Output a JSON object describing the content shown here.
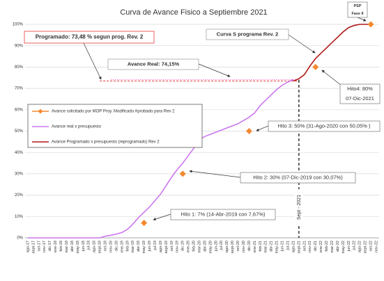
{
  "chart_data": {
    "type": "line",
    "title": "Curva de Avance Fisico a Septiembre 2021",
    "categories": [
      "ago-17",
      "sept-17",
      "oct-17",
      "nov-17",
      "dic-17",
      "ene-18",
      "feb-18",
      "mar-18",
      "abr-18",
      "may-18",
      "jun-18",
      "jul-18",
      "ago-18",
      "sept-18",
      "oct-18",
      "nov-18",
      "dic-18",
      "ene-19",
      "feb-19",
      "mar-19",
      "abr-19",
      "may-19",
      "jun-19",
      "jul-19",
      "ago-19",
      "sept-19",
      "oct-19",
      "nov-19",
      "dic-19",
      "ene-20",
      "feb-20",
      "mar-20",
      "abr-20",
      "may-20",
      "jun-20",
      "jul-20",
      "ago-20",
      "sept-20",
      "oct-20",
      "nov-20",
      "dic-20",
      "ene-21",
      "feb-21",
      "mar-21",
      "abr-21",
      "may-21",
      "jun-21",
      "jul-21",
      "ago-21",
      "sept-21",
      "oct-21",
      "nov-21",
      "dic-21",
      "ene-22",
      "feb-22",
      "mar-22",
      "abr-22",
      "may-22",
      "jun-22",
      "jul-22",
      "ago-22",
      "sept-22",
      "oct-22",
      "nov-22"
    ],
    "series": [
      {
        "name": "Avance solicitado por MOP Proy. Modificado Aprobado para Rev 2",
        "color": "#f28a30",
        "style": "markers",
        "values": [
          null,
          null,
          null,
          null,
          null,
          null,
          null,
          null,
          null,
          null,
          null,
          null,
          null,
          null,
          null,
          null,
          null,
          null,
          null,
          null,
          null,
          7,
          null,
          null,
          null,
          null,
          null,
          null,
          30,
          null,
          null,
          null,
          null,
          null,
          null,
          null,
          null,
          null,
          null,
          null,
          50,
          null,
          null,
          null,
          null,
          null,
          null,
          null,
          null,
          null,
          null,
          null,
          80,
          null,
          null,
          null,
          null,
          null,
          null,
          null,
          null,
          null,
          100,
          null
        ]
      },
      {
        "name": "Avance real x presupuesto",
        "color": "#cc77ee",
        "style": "line",
        "values": [
          0,
          0,
          0,
          0,
          0,
          0,
          0,
          0,
          0,
          0,
          0,
          0,
          0,
          0,
          0.8,
          1.2,
          1.8,
          2.5,
          4,
          6.5,
          9.5,
          12,
          14.5,
          17.5,
          20.5,
          24.5,
          28.5,
          32,
          35,
          38.5,
          42,
          46,
          47.5,
          48.5,
          49.5,
          50.5,
          51.5,
          52.5,
          53.5,
          55,
          56.5,
          58.5,
          62,
          64.5,
          67,
          69.5,
          71.5,
          73,
          74.15,
          null,
          null,
          null,
          null,
          null,
          null,
          null,
          null,
          null,
          null,
          null,
          null,
          null,
          null,
          null
        ]
      },
      {
        "name": "Avance Programado x presupuesto (reprogramado) Rev 2",
        "color": "#b01818",
        "style": "line",
        "values": [
          null,
          null,
          null,
          null,
          null,
          null,
          null,
          null,
          null,
          null,
          null,
          null,
          null,
          null,
          null,
          null,
          null,
          null,
          null,
          null,
          null,
          null,
          null,
          null,
          null,
          null,
          null,
          null,
          null,
          null,
          null,
          null,
          null,
          null,
          null,
          null,
          null,
          null,
          null,
          null,
          null,
          null,
          null,
          null,
          null,
          null,
          null,
          null,
          73.48,
          74.5,
          76.5,
          80.5,
          84,
          86.5,
          89,
          91.5,
          94,
          96.5,
          98.5,
          99.5,
          100,
          100,
          100,
          null
        ]
      }
    ],
    "reference_lines": [
      {
        "value": 73.48,
        "color": "#e03030"
      },
      {
        "value": 74.15,
        "color": "#ff80d0"
      }
    ],
    "vertical_line": {
      "category": "sept-21",
      "label": "Sept - 2021"
    },
    "annotations": [
      {
        "lines": [
          "Programado: 73,48 % segun prog. Rev. 2"
        ],
        "color": "#e02020"
      },
      {
        "lines": [
          "Avance Real: 74,15%"
        ],
        "color": "#b060e0"
      },
      {
        "lines": [
          "Curva S programa Rev. 2"
        ],
        "color": "#e02020"
      },
      {
        "lines": [
          "Hito 1: 7% (14-Abr-2019 con 7,67%)"
        ],
        "color": "#222222"
      },
      {
        "lines": [
          "Hito 2: 30% (07-Dic-2019 con 30,07%)"
        ],
        "color": "#222222"
      },
      {
        "lines": [
          "Hito 3: 50% (31-Ago-2020 con 50,05% )"
        ],
        "color": "#222222"
      },
      {
        "lines": [
          "Hito4: 80%",
          "07-Dic-2021"
        ],
        "color": "#222222"
      },
      {
        "lines": [
          "PSP",
          "Fase II"
        ],
        "color": "#222222"
      }
    ],
    "ylim": [
      0,
      100
    ],
    "yticks": [
      {
        "value": 0,
        "label": "0%"
      },
      {
        "value": 10,
        "label": "10%"
      },
      {
        "value": 20,
        "label": "20%"
      },
      {
        "value": 30,
        "label": "30%"
      },
      {
        "value": 40,
        "label": "40%"
      },
      {
        "value": 50,
        "label": "50%"
      },
      {
        "value": 60,
        "label": "60%"
      },
      {
        "value": 70,
        "label": "70%"
      },
      {
        "value": 80,
        "label": "80%"
      },
      {
        "value": 90,
        "label": "90%"
      },
      {
        "value": 100,
        "label": "100%"
      }
    ],
    "grid": true
  }
}
